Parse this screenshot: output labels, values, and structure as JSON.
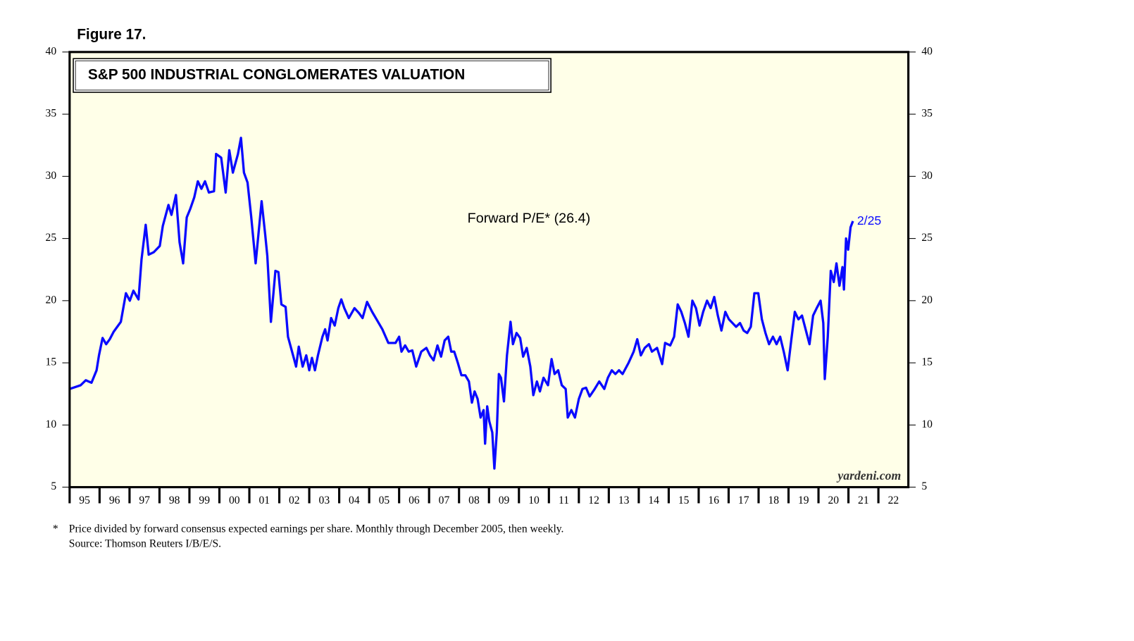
{
  "chart_data": {
    "type": "line",
    "figure_label": "Figure 17.",
    "title": "S&P 500 INDUSTRIAL CONGLOMERATES VALUATION",
    "annotation_date": "2/25",
    "watermark": "yardeni.com",
    "footnote_marker": "*",
    "footnote": "Price divided by forward consensus expected earnings per share. Monthly through December 2005, then weekly.",
    "source": "Source: Thomson Reuters I/B/E/S.",
    "x": [
      1995.0,
      1995.37,
      1995.54,
      1995.73,
      1995.9,
      1995.98,
      1996.1,
      1996.22,
      1996.34,
      1996.47,
      1996.71,
      1996.88,
      1997.01,
      1997.13,
      1997.3,
      1997.4,
      1997.54,
      1997.64,
      1997.81,
      1998.01,
      1998.11,
      1998.3,
      1998.4,
      1998.55,
      1998.67,
      1998.79,
      1998.91,
      1999.03,
      1999.16,
      1999.28,
      1999.4,
      1999.52,
      1999.65,
      1999.82,
      1999.89,
      2000.06,
      2000.21,
      2000.33,
      2000.45,
      2000.62,
      2000.72,
      2000.82,
      2000.94,
      2001.06,
      2001.21,
      2001.41,
      2001.53,
      2001.6,
      2001.72,
      2001.87,
      2001.97,
      2002.07,
      2002.21,
      2002.29,
      2002.46,
      2002.56,
      2002.65,
      2002.78,
      2002.9,
      2003.0,
      2003.09,
      2003.19,
      2003.29,
      2003.44,
      2003.53,
      2003.61,
      2003.73,
      2003.85,
      2003.97,
      2004.07,
      2004.17,
      2004.32,
      2004.51,
      2004.66,
      2004.78,
      2004.93,
      2005.1,
      2005.27,
      2005.44,
      2005.64,
      2005.88,
      2006.0,
      2006.08,
      2006.2,
      2006.32,
      2006.44,
      2006.57,
      2006.74,
      2006.91,
      2007.03,
      2007.15,
      2007.28,
      2007.4,
      2007.52,
      2007.64,
      2007.74,
      2007.84,
      2007.96,
      2008.08,
      2008.21,
      2008.33,
      2008.43,
      2008.52,
      2008.62,
      2008.72,
      2008.82,
      2008.87,
      2008.94,
      2009.01,
      2009.11,
      2009.18,
      2009.26,
      2009.33,
      2009.4,
      2009.5,
      2009.6,
      2009.72,
      2009.8,
      2009.92,
      2010.04,
      2010.14,
      2010.26,
      2010.38,
      2010.48,
      2010.6,
      2010.7,
      2010.82,
      2010.97,
      2011.09,
      2011.19,
      2011.31,
      2011.43,
      2011.56,
      2011.63,
      2011.75,
      2011.87,
      2012.0,
      2012.12,
      2012.24,
      2012.36,
      2012.53,
      2012.68,
      2012.85,
      2012.97,
      2013.1,
      2013.22,
      2013.34,
      2013.46,
      2013.66,
      2013.83,
      2013.95,
      2014.07,
      2014.2,
      2014.34,
      2014.44,
      2014.61,
      2014.78,
      2014.88,
      2015.05,
      2015.18,
      2015.3,
      2015.42,
      2015.54,
      2015.66,
      2015.79,
      2015.91,
      2016.03,
      2016.15,
      2016.28,
      2016.4,
      2016.52,
      2016.64,
      2016.76,
      2016.89,
      2017.01,
      2017.13,
      2017.25,
      2017.38,
      2017.5,
      2017.62,
      2017.74,
      2017.86,
      2017.99,
      2018.11,
      2018.23,
      2018.35,
      2018.48,
      2018.6,
      2018.72,
      2018.84,
      2018.97,
      2019.09,
      2019.21,
      2019.33,
      2019.45,
      2019.58,
      2019.7,
      2019.82,
      2019.94,
      2020.07,
      2020.16,
      2020.21,
      2020.31,
      2020.41,
      2020.51,
      2020.6,
      2020.7,
      2020.8,
      2020.85,
      2020.92,
      2020.99,
      2021.07,
      2021.15
    ],
    "series": [
      {
        "name": "Forward P/E* (26.4)",
        "color": "#0a0aff",
        "values": [
          12.9,
          13.2,
          13.6,
          13.4,
          14.4,
          15.6,
          17.0,
          16.5,
          16.9,
          17.5,
          18.3,
          20.6,
          20.0,
          20.8,
          20.1,
          23.3,
          26.1,
          23.7,
          23.9,
          24.4,
          26.0,
          27.7,
          26.9,
          28.5,
          24.7,
          23.0,
          26.7,
          27.4,
          28.3,
          29.6,
          29.0,
          29.6,
          28.7,
          28.8,
          31.8,
          31.5,
          28.7,
          32.1,
          30.3,
          31.8,
          33.1,
          30.3,
          29.5,
          26.8,
          23.0,
          28.0,
          25.3,
          23.6,
          18.3,
          22.4,
          22.3,
          19.7,
          19.5,
          17.1,
          15.6,
          14.7,
          16.3,
          14.7,
          15.6,
          14.4,
          15.4,
          14.4,
          15.6,
          17.1,
          17.7,
          16.8,
          18.6,
          18.0,
          19.4,
          20.1,
          19.4,
          18.6,
          19.4,
          19.0,
          18.6,
          19.9,
          19.1,
          18.4,
          17.7,
          16.6,
          16.6,
          17.1,
          15.9,
          16.4,
          15.9,
          16.0,
          14.7,
          15.9,
          16.2,
          15.6,
          15.2,
          16.4,
          15.5,
          16.8,
          17.1,
          15.9,
          15.9,
          15.0,
          14.0,
          14.0,
          13.5,
          11.8,
          12.7,
          12.1,
          10.6,
          11.2,
          8.5,
          11.5,
          10.3,
          9.4,
          6.5,
          9.4,
          14.1,
          13.8,
          11.9,
          15.6,
          18.3,
          16.5,
          17.4,
          17.0,
          15.5,
          16.2,
          14.7,
          12.4,
          13.5,
          12.7,
          13.8,
          13.2,
          15.3,
          14.1,
          14.4,
          13.2,
          12.9,
          10.6,
          11.2,
          10.6,
          12.1,
          12.9,
          13.0,
          12.3,
          12.9,
          13.5,
          12.9,
          13.8,
          14.4,
          14.1,
          14.4,
          14.1,
          15.0,
          15.9,
          16.9,
          15.6,
          16.2,
          16.5,
          15.9,
          16.2,
          14.9,
          16.6,
          16.4,
          17.1,
          19.7,
          19.1,
          18.2,
          17.1,
          20.0,
          19.4,
          18.0,
          19.1,
          20.0,
          19.4,
          20.3,
          18.8,
          17.6,
          19.1,
          18.5,
          18.2,
          17.9,
          18.2,
          17.6,
          17.4,
          17.9,
          20.6,
          20.6,
          18.5,
          17.4,
          16.5,
          17.1,
          16.5,
          17.1,
          15.9,
          14.4,
          16.8,
          19.1,
          18.5,
          18.8,
          17.6,
          16.5,
          18.8,
          19.4,
          20.0,
          18.2,
          13.7,
          17.1,
          22.4,
          21.5,
          23.0,
          21.2,
          22.7,
          20.9,
          25.0,
          24.1,
          25.9,
          26.4
        ]
      }
    ],
    "xlim": [
      1995,
      2023
    ],
    "xticks": [
      {
        "value": 1995,
        "label": "95"
      },
      {
        "value": 1996,
        "label": "96"
      },
      {
        "value": 1997,
        "label": "97"
      },
      {
        "value": 1998,
        "label": "98"
      },
      {
        "value": 1999,
        "label": "99"
      },
      {
        "value": 2000,
        "label": "00"
      },
      {
        "value": 2001,
        "label": "01"
      },
      {
        "value": 2002,
        "label": "02"
      },
      {
        "value": 2003,
        "label": "03"
      },
      {
        "value": 2004,
        "label": "04"
      },
      {
        "value": 2005,
        "label": "05"
      },
      {
        "value": 2006,
        "label": "06"
      },
      {
        "value": 2007,
        "label": "07"
      },
      {
        "value": 2008,
        "label": "08"
      },
      {
        "value": 2009,
        "label": "09"
      },
      {
        "value": 2010,
        "label": "10"
      },
      {
        "value": 2011,
        "label": "11"
      },
      {
        "value": 2012,
        "label": "12"
      },
      {
        "value": 2013,
        "label": "13"
      },
      {
        "value": 2014,
        "label": "14"
      },
      {
        "value": 2015,
        "label": "15"
      },
      {
        "value": 2016,
        "label": "16"
      },
      {
        "value": 2017,
        "label": "17"
      },
      {
        "value": 2018,
        "label": "18"
      },
      {
        "value": 2019,
        "label": "19"
      },
      {
        "value": 2020,
        "label": "20"
      },
      {
        "value": 2021,
        "label": "21"
      },
      {
        "value": 2022,
        "label": "22"
      }
    ],
    "ylim": [
      5,
      40
    ],
    "yticks": [
      5,
      10,
      15,
      20,
      25,
      30,
      35,
      40
    ],
    "background": "#ffffe8"
  }
}
